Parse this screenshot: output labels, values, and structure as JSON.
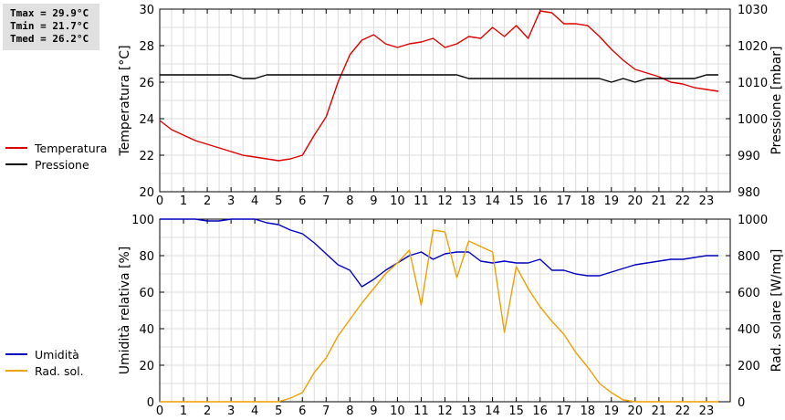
{
  "stats": {
    "tmax": "Tmax = 29.9°C",
    "tmin": "Tmin = 21.7°C",
    "tmed": "Tmed = 26.2°C"
  },
  "chart_data": [
    {
      "type": "line",
      "xlabel": "",
      "ylabel": "Temperatura [°C]",
      "ylabel_right": "Pressione [mbar]",
      "xlim": [
        0,
        24
      ],
      "x_ticks": [
        0,
        1,
        2,
        3,
        4,
        5,
        6,
        7,
        8,
        9,
        10,
        11,
        12,
        13,
        14,
        15,
        16,
        17,
        18,
        19,
        20,
        21,
        22,
        23
      ],
      "ylim": [
        20,
        30
      ],
      "y_ticks": [
        20,
        22,
        24,
        26,
        28,
        30
      ],
      "ylim_right": [
        980,
        1030
      ],
      "y_ticks_right": [
        980,
        990,
        1000,
        1010,
        1020,
        1030
      ],
      "grid": true,
      "legend_position": "left",
      "series": [
        {
          "name": "Temperatura",
          "axis": "left",
          "color": "#e00000",
          "x": [
            0,
            0.5,
            1,
            1.5,
            2,
            2.5,
            3,
            3.5,
            4,
            4.5,
            5,
            5.5,
            6,
            6.5,
            7,
            7.5,
            8,
            8.5,
            9,
            9.5,
            10,
            10.5,
            11,
            11.5,
            12,
            12.5,
            13,
            13.5,
            14,
            14.5,
            15,
            15.5,
            16,
            16.5,
            17,
            17.5,
            18,
            18.5,
            19,
            19.5,
            20,
            20.5,
            21,
            21.5,
            22,
            22.5,
            23,
            23.5
          ],
          "values": [
            23.9,
            23.4,
            23.1,
            22.8,
            22.6,
            22.4,
            22.2,
            22.0,
            21.9,
            21.8,
            21.7,
            21.8,
            22.0,
            23.1,
            24.1,
            26.0,
            27.5,
            28.3,
            28.6,
            28.1,
            27.9,
            28.1,
            28.2,
            28.4,
            27.9,
            28.1,
            28.5,
            28.4,
            29.0,
            28.5,
            29.1,
            28.4,
            29.9,
            29.8,
            29.2,
            29.2,
            29.1,
            28.5,
            27.8,
            27.2,
            26.7,
            26.5,
            26.3,
            26.0,
            25.9,
            25.7,
            25.6,
            25.5
          ]
        },
        {
          "name": "Pressione",
          "axis": "right",
          "color": "#000000",
          "x": [
            0,
            0.5,
            1,
            1.5,
            2,
            2.5,
            3,
            3.5,
            4,
            4.5,
            5,
            5.5,
            6,
            6.5,
            7,
            7.5,
            8,
            8.5,
            9,
            9.5,
            10,
            10.5,
            11,
            11.5,
            12,
            12.5,
            13,
            13.5,
            14,
            14.5,
            15,
            15.5,
            16,
            16.5,
            17,
            17.5,
            18,
            18.5,
            19,
            19.5,
            20,
            20.5,
            21,
            21.5,
            22,
            22.5,
            23,
            23.5
          ],
          "values": [
            1012,
            1012,
            1012,
            1012,
            1012,
            1012,
            1012,
            1011,
            1011,
            1012,
            1012,
            1012,
            1012,
            1012,
            1012,
            1012,
            1012,
            1012,
            1012,
            1012,
            1012,
            1012,
            1012,
            1012,
            1012,
            1012,
            1011,
            1011,
            1011,
            1011,
            1011,
            1011,
            1011,
            1011,
            1011,
            1011,
            1011,
            1011,
            1010,
            1011,
            1010,
            1011,
            1011,
            1011,
            1011,
            1011,
            1012,
            1012
          ]
        }
      ]
    },
    {
      "type": "line",
      "xlabel": "",
      "ylabel": "Umidità relativa [%]",
      "ylabel_right": "Rad. solare [W/mq]",
      "xlim": [
        0,
        24
      ],
      "x_ticks": [
        0,
        1,
        2,
        3,
        4,
        5,
        6,
        7,
        8,
        9,
        10,
        11,
        12,
        13,
        14,
        15,
        16,
        17,
        18,
        19,
        20,
        21,
        22,
        23
      ],
      "ylim": [
        0,
        100
      ],
      "y_ticks": [
        0,
        20,
        40,
        60,
        80,
        100
      ],
      "ylim_right": [
        0,
        1000
      ],
      "y_ticks_right": [
        0,
        200,
        400,
        600,
        800,
        1000
      ],
      "grid": true,
      "legend_position": "left",
      "series": [
        {
          "name": "Umidità",
          "axis": "left",
          "color": "#0000c0",
          "x": [
            0,
            0.5,
            1,
            1.5,
            2,
            2.5,
            3,
            3.5,
            4,
            4.5,
            5,
            5.5,
            6,
            6.5,
            7,
            7.5,
            8,
            8.5,
            9,
            9.5,
            10,
            10.5,
            11,
            11.5,
            12,
            12.5,
            13,
            13.5,
            14,
            14.5,
            15,
            15.5,
            16,
            16.5,
            17,
            17.5,
            18,
            18.5,
            19,
            19.5,
            20,
            20.5,
            21,
            21.5,
            22,
            22.5,
            23,
            23.5
          ],
          "values": [
            100,
            100,
            100,
            100,
            99,
            99,
            100,
            100,
            100,
            98,
            97,
            94,
            92,
            87,
            81,
            75,
            72,
            63,
            67,
            72,
            76,
            80,
            82,
            78,
            81,
            82,
            82,
            77,
            76,
            77,
            76,
            76,
            78,
            72,
            72,
            70,
            69,
            69,
            71,
            73,
            75,
            76,
            77,
            78,
            78,
            79,
            80,
            80
          ]
        },
        {
          "name": "Rad. sol.",
          "axis": "right",
          "color": "#f0a000",
          "x": [
            0,
            0.5,
            1,
            1.5,
            2,
            2.5,
            3,
            3.5,
            4,
            4.5,
            5,
            5.5,
            6,
            6.5,
            7,
            7.5,
            8,
            8.5,
            9,
            9.5,
            10,
            10.5,
            11,
            11.5,
            12,
            12.5,
            13,
            13.5,
            14,
            14.5,
            15,
            15.5,
            16,
            16.5,
            17,
            17.5,
            18,
            18.5,
            19,
            19.5,
            20,
            20.5,
            21,
            21.5,
            22,
            22.5,
            23,
            23.5
          ],
          "values": [
            0,
            0,
            0,
            0,
            0,
            0,
            0,
            0,
            0,
            0,
            0,
            20,
            50,
            160,
            240,
            360,
            450,
            540,
            620,
            700,
            760,
            830,
            530,
            940,
            930,
            680,
            880,
            850,
            820,
            380,
            740,
            620,
            520,
            440,
            370,
            270,
            190,
            100,
            50,
            10,
            0,
            0,
            0,
            0,
            0,
            0,
            0,
            0
          ]
        }
      ]
    }
  ]
}
